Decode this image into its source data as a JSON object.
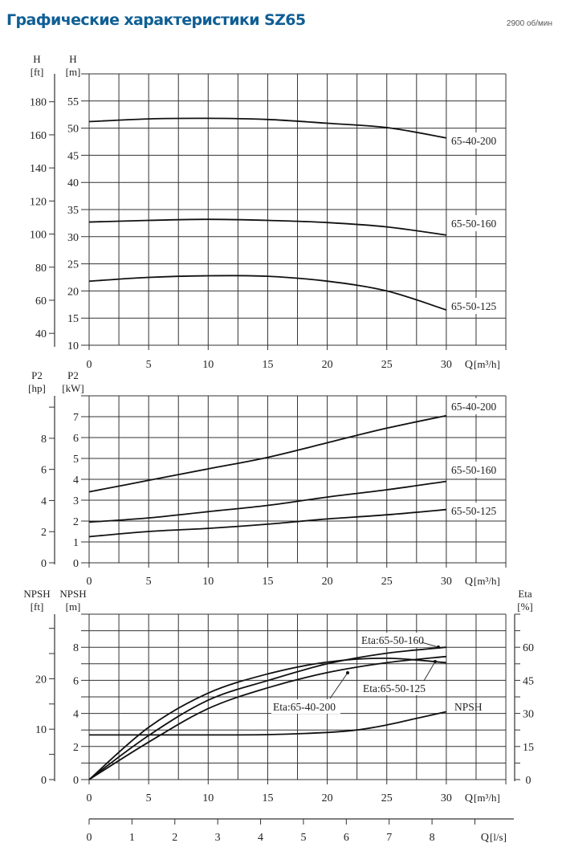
{
  "header": {
    "title": "Графические характеристики SZ65",
    "speed": "2900 об/мин"
  },
  "colors": {
    "title": "#0f5f94",
    "grid": "#333333",
    "curve": "#111111"
  },
  "chart_data": [
    {
      "type": "line",
      "name": "head",
      "x_axis": {
        "label": "Q",
        "unit": "[m³/h]",
        "ticks": [
          0,
          5,
          10,
          15,
          20,
          25,
          30
        ],
        "xlim": [
          0,
          35
        ],
        "grid_step": 2.5
      },
      "y_axis": {
        "label": "H",
        "unit": "[m]",
        "ticks": [
          10,
          15,
          20,
          25,
          30,
          35,
          40,
          45,
          50,
          55
        ],
        "ylim": [
          10,
          60
        ]
      },
      "y_axis_outer": {
        "label": "H",
        "unit": "[ft]",
        "ticks": [
          40,
          60,
          80,
          100,
          120,
          140,
          160,
          180
        ],
        "factor_to_main": 0.3048
      },
      "grid": true,
      "series": [
        {
          "name": "65-40-200",
          "x": [
            0,
            5,
            10,
            15,
            20,
            25,
            30
          ],
          "y": [
            51.2,
            51.7,
            51.8,
            51.6,
            50.9,
            50.1,
            48.2
          ]
        },
        {
          "name": "65-50-160",
          "x": [
            0,
            5,
            10,
            15,
            20,
            25,
            30
          ],
          "y": [
            32.7,
            33.0,
            33.2,
            33.0,
            32.6,
            31.8,
            30.3
          ]
        },
        {
          "name": "65-50-125",
          "x": [
            0,
            5,
            10,
            15,
            20,
            25,
            30
          ],
          "y": [
            21.8,
            22.5,
            22.8,
            22.7,
            21.8,
            20.0,
            16.5
          ]
        }
      ]
    },
    {
      "type": "line",
      "name": "power",
      "x_axis": {
        "label": "Q",
        "unit": "[m³/h]",
        "ticks": [
          0,
          5,
          10,
          15,
          20,
          25,
          30
        ],
        "xlim": [
          0,
          35
        ],
        "grid_step": 2.5
      },
      "y_axis": {
        "label": "P2",
        "unit": "[kW]",
        "ticks": [
          0,
          1,
          2,
          3,
          4,
          5,
          6,
          7
        ],
        "ylim": [
          0,
          8
        ]
      },
      "y_axis_outer": {
        "label": "P2",
        "unit": "[hp]",
        "ticks": [
          0,
          2,
          4,
          6,
          8
        ],
        "factor_to_main": 0.7457
      },
      "grid": true,
      "series": [
        {
          "name": "65-40-200",
          "x": [
            0,
            5,
            10,
            15,
            20,
            25,
            30
          ],
          "y": [
            3.4,
            3.95,
            4.5,
            5.05,
            5.75,
            6.45,
            7.05
          ]
        },
        {
          "name": "65-50-160",
          "x": [
            0,
            5,
            10,
            15,
            20,
            25,
            30
          ],
          "y": [
            1.95,
            2.15,
            2.45,
            2.75,
            3.15,
            3.5,
            3.9
          ]
        },
        {
          "name": "65-50-125",
          "x": [
            0,
            5,
            10,
            15,
            20,
            25,
            30
          ],
          "y": [
            1.25,
            1.5,
            1.65,
            1.85,
            2.1,
            2.3,
            2.55
          ]
        }
      ]
    },
    {
      "type": "line",
      "name": "npsh-efficiency",
      "x_axis": {
        "label": "Q",
        "unit": "[m³/h]",
        "ticks": [
          0,
          5,
          10,
          15,
          20,
          25,
          30
        ],
        "xlim": [
          0,
          35
        ],
        "grid_step": 2.5
      },
      "x_axis_secondary": {
        "label": "Q",
        "unit": "[l/s]",
        "ticks": [
          0,
          1,
          2,
          3,
          4,
          5,
          6,
          7,
          8
        ],
        "factor_to_main": 3.6
      },
      "y_axis": {
        "label": "NPSH",
        "unit": "[m]",
        "ticks": [
          0,
          2,
          4,
          6,
          8
        ],
        "ylim": [
          0,
          10
        ]
      },
      "y_axis_outer": {
        "label": "NPSH",
        "unit": "[ft]",
        "ticks": [
          0,
          10,
          20
        ],
        "factor_to_main": 0.3048
      },
      "y_axis_right": {
        "label": "Eta",
        "unit": "[%]",
        "ticks": [
          0,
          15,
          30,
          45,
          60
        ],
        "ylim": [
          0,
          75
        ]
      },
      "grid": true,
      "series": [
        {
          "name": "Eta:65-50-160",
          "axis": "right",
          "x": [
            0,
            5,
            10,
            15,
            20,
            25,
            30
          ],
          "y": [
            0,
            20,
            36,
            44.9,
            52.5,
            57.3,
            60
          ]
        },
        {
          "name": "Eta:65-50-125",
          "axis": "right",
          "x": [
            0,
            5,
            10,
            15,
            20,
            25,
            30
          ],
          "y": [
            0,
            23.7,
            39.2,
            47.9,
            53.3,
            55,
            53
          ]
        },
        {
          "name": "Eta:65-40-200",
          "axis": "right",
          "x": [
            0,
            5,
            10,
            15,
            20,
            25,
            30
          ],
          "y": [
            0,
            17,
            32.2,
            41.6,
            48.5,
            53,
            55.8
          ]
        },
        {
          "name": "NPSH",
          "axis": "left",
          "x": [
            0,
            5,
            10,
            15,
            20,
            22.5,
            25,
            27.5,
            30
          ],
          "y": [
            2.7,
            2.7,
            2.7,
            2.72,
            2.85,
            3.0,
            3.3,
            3.7,
            4.1
          ]
        }
      ]
    }
  ]
}
